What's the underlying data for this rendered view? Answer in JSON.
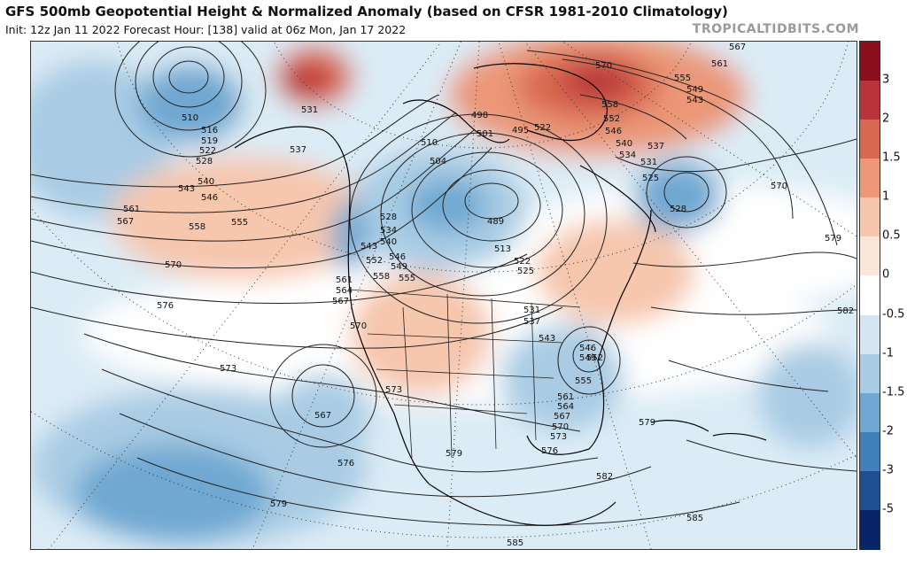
{
  "header": {
    "title": "GFS 500mb Geopotential Height & Normalized Anomaly (based on CFSR 1981-2010 Climatology)",
    "subtitle": "Init: 12z Jan 11 2022   Forecast Hour: [138]   valid at 06z Mon, Jan 17 2022",
    "brand": "TROPICALTIDBITS.COM"
  },
  "colorbar": {
    "labels": [
      "3",
      "2",
      "1.5",
      "1",
      "0.5",
      "0",
      "-0.5",
      "-1",
      "-1.5",
      "-2",
      "-3",
      "-5"
    ],
    "colors": [
      "#8b0e1c",
      "#b8343a",
      "#d8674f",
      "#eb9778",
      "#f6c6ad",
      "#fbe6da",
      "#ffffff",
      "#d4e5f1",
      "#a9cce4",
      "#6fa8d2",
      "#3f7fba",
      "#1f4f93",
      "#0a2468"
    ]
  },
  "map": {
    "contour_labels": [
      "567",
      "570",
      "561",
      "555",
      "549",
      "543",
      "558",
      "552",
      "546",
      "540",
      "537",
      "534",
      "531",
      "525",
      "528",
      "570",
      "579",
      "582",
      "510",
      "516",
      "519",
      "522",
      "528",
      "540",
      "543",
      "546",
      "531",
      "537",
      "561",
      "567",
      "558",
      "555",
      "570",
      "576",
      "573",
      "567",
      "510",
      "501",
      "495",
      "504",
      "498",
      "522",
      "528",
      "534",
      "540",
      "543",
      "546",
      "549",
      "552",
      "555",
      "558",
      "561",
      "564",
      "567",
      "570",
      "489",
      "513",
      "522",
      "525",
      "531",
      "537",
      "543",
      "546",
      "549",
      "552",
      "555",
      "561",
      "564",
      "567",
      "570",
      "573",
      "576",
      "579",
      "573",
      "579",
      "582",
      "585",
      "576",
      "579",
      "585"
    ]
  }
}
